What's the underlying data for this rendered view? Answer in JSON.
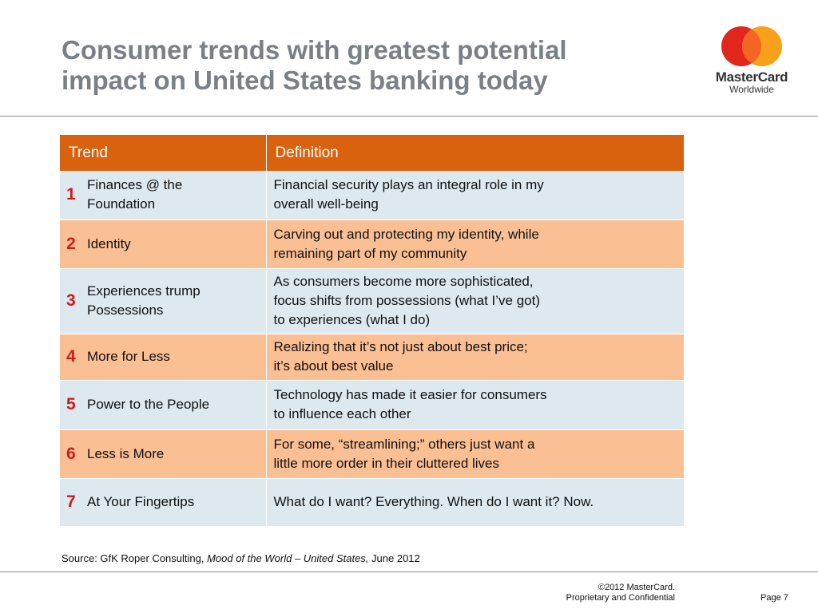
{
  "title": {
    "line1": "Consumer trends with greatest potential",
    "line2": "impact on United States banking today"
  },
  "logo": {
    "brand": "MasterCard",
    "sub": "Worldwide",
    "colors": {
      "red": "#e2261c",
      "yellow": "#f7a11a",
      "overlap": "#f26522"
    }
  },
  "table": {
    "headers": [
      "Trend",
      "Definition"
    ],
    "header_color": "#d9620f",
    "rows": [
      {
        "num": "1",
        "trend": [
          "Finances @ the",
          "Foundation"
        ],
        "definition": [
          "Financial security plays an integral role in my",
          "overall well-being"
        ]
      },
      {
        "num": "2",
        "trend": [
          "Identity"
        ],
        "definition": [
          "Carving out and protecting my identity, while",
          "remaining part of my community"
        ]
      },
      {
        "num": "3",
        "trend": [
          "Experiences trump",
          "Possessions"
        ],
        "definition": [
          "As consumers become more sophisticated,",
          "focus shifts from possessions (what I’ve got)",
          "to experiences (what I do)"
        ]
      },
      {
        "num": "4",
        "trend": [
          "More for Less"
        ],
        "definition": [
          "Realizing that it’s not just about best price;",
          "it’s about best value"
        ]
      },
      {
        "num": "5",
        "trend": [
          "Power to the People"
        ],
        "definition": [
          "Technology has made it easier for consumers",
          "to influence each other"
        ]
      },
      {
        "num": "6",
        "trend": [
          "Less is More"
        ],
        "definition": [
          "For some, “streamlining;” others just want a",
          "little more order in their cluttered lives"
        ]
      },
      {
        "num": "7",
        "trend": [
          "At Your Fingertips"
        ],
        "definition": [
          "What do I want? Everything. When do I want it? Now."
        ]
      }
    ]
  },
  "source": {
    "prefix": "Source: GfK Roper Consulting, ",
    "italic": "Mood of the World – United States,",
    "suffix": " June 2012"
  },
  "footer": {
    "copyright": "©2012 MasterCard.",
    "confidential": "Proprietary and Confidential",
    "page": "Page 7"
  }
}
